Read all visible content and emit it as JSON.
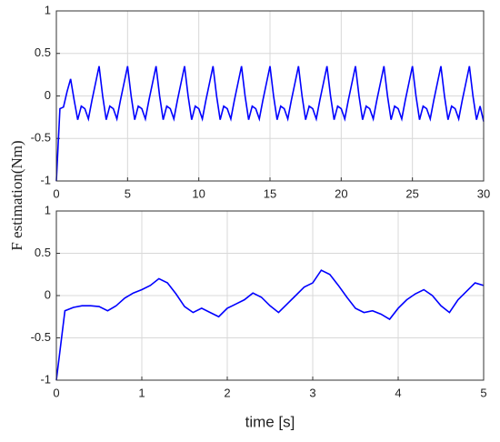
{
  "chart_data": [
    {
      "type": "line",
      "color": "#0000ff",
      "ylabel": "F estimation(Nm)",
      "x": [
        0,
        0.25,
        0.5,
        0.75,
        1,
        1.25,
        1.5,
        1.75,
        2,
        2.25,
        2.5,
        2.75,
        3,
        3.25,
        3.5,
        3.75,
        4,
        4.25,
        4.5,
        4.75,
        5,
        5.25,
        5.5,
        5.75,
        6,
        6.25,
        6.5,
        6.75,
        7,
        7.25,
        7.5,
        7.75,
        8,
        8.25,
        8.5,
        8.75,
        9,
        9.25,
        9.5,
        9.75,
        10,
        10.25,
        10.5,
        10.75,
        11,
        11.25,
        11.5,
        11.75,
        12,
        12.25,
        12.5,
        12.75,
        13,
        13.25,
        13.5,
        13.75,
        14,
        14.25,
        14.5,
        14.75,
        15,
        15.25,
        15.5,
        15.75,
        16,
        16.25,
        16.5,
        16.75,
        17,
        17.25,
        17.5,
        17.75,
        18,
        18.25,
        18.5,
        18.75,
        19,
        19.25,
        19.5,
        19.75,
        20,
        20.25,
        20.5,
        20.75,
        21,
        21.25,
        21.5,
        21.75,
        22,
        22.25,
        22.5,
        22.75,
        23,
        23.25,
        23.5,
        23.75,
        24,
        24.25,
        24.5,
        24.75,
        25,
        25.25,
        25.5,
        25.75,
        26,
        26.25,
        26.5,
        26.75,
        27,
        27.25,
        27.5,
        27.75,
        28,
        28.25,
        28.5,
        28.75,
        29,
        29.25,
        29.5,
        29.75,
        30
      ],
      "values": [
        -1,
        -0.15,
        -0.13,
        0.05,
        0.2,
        -0.05,
        -0.28,
        -0.12,
        -0.15,
        -0.27,
        -0.05,
        0.15,
        0.35,
        0.0,
        -0.28,
        -0.12,
        -0.15,
        -0.27,
        -0.05,
        0.15,
        0.35,
        0.0,
        -0.28,
        -0.12,
        -0.15,
        -0.27,
        -0.05,
        0.15,
        0.35,
        0.0,
        -0.28,
        -0.12,
        -0.15,
        -0.27,
        -0.05,
        0.15,
        0.35,
        0.0,
        -0.28,
        -0.12,
        -0.15,
        -0.27,
        -0.05,
        0.15,
        0.35,
        0.0,
        -0.28,
        -0.12,
        -0.15,
        -0.27,
        -0.05,
        0.15,
        0.35,
        0.0,
        -0.28,
        -0.12,
        -0.15,
        -0.27,
        -0.05,
        0.15,
        0.35,
        0.0,
        -0.28,
        -0.12,
        -0.15,
        -0.27,
        -0.05,
        0.15,
        0.35,
        0.0,
        -0.28,
        -0.12,
        -0.15,
        -0.27,
        -0.05,
        0.15,
        0.35,
        0.0,
        -0.28,
        -0.12,
        -0.15,
        -0.27,
        -0.05,
        0.15,
        0.35,
        0.0,
        -0.28,
        -0.12,
        -0.15,
        -0.27,
        -0.05,
        0.15,
        0.35,
        0.0,
        -0.28,
        -0.12,
        -0.15,
        -0.27,
        -0.05,
        0.15,
        0.35,
        0.0,
        -0.28,
        -0.12,
        -0.15,
        -0.27,
        -0.05,
        0.15,
        0.35,
        0.0,
        -0.28,
        -0.12,
        -0.15,
        -0.27,
        -0.05,
        0.15,
        0.35,
        0.0,
        -0.28,
        -0.12,
        -0.3
      ],
      "xlim": [
        0,
        30
      ],
      "xticks": [
        0,
        5,
        10,
        15,
        20,
        25,
        30
      ],
      "ylim": [
        -1,
        1
      ],
      "yticks": [
        -1,
        -0.5,
        0,
        0.5,
        1
      ],
      "grid": true
    },
    {
      "type": "line",
      "color": "#0000ff",
      "xlabel": "time [s]",
      "x": [
        0,
        0.1,
        0.2,
        0.3,
        0.4,
        0.5,
        0.6,
        0.7,
        0.8,
        0.9,
        1,
        1.1,
        1.2,
        1.3,
        1.4,
        1.5,
        1.6,
        1.7,
        1.8,
        1.9,
        2,
        2.1,
        2.2,
        2.3,
        2.4,
        2.5,
        2.6,
        2.7,
        2.8,
        2.9,
        3,
        3.1,
        3.2,
        3.3,
        3.4,
        3.5,
        3.6,
        3.7,
        3.8,
        3.9,
        4,
        4.1,
        4.2,
        4.3,
        4.4,
        4.5,
        4.6,
        4.7,
        4.8,
        4.9,
        5
      ],
      "values": [
        -1,
        -0.18,
        -0.14,
        -0.12,
        -0.12,
        -0.13,
        -0.18,
        -0.12,
        -0.03,
        0.03,
        0.07,
        0.12,
        0.2,
        0.15,
        0.02,
        -0.13,
        -0.2,
        -0.15,
        -0.2,
        -0.25,
        -0.15,
        -0.1,
        -0.05,
        0.03,
        -0.02,
        -0.12,
        -0.2,
        -0.1,
        0.0,
        0.1,
        0.15,
        0.3,
        0.25,
        0.12,
        -0.02,
        -0.15,
        -0.2,
        -0.18,
        -0.22,
        -0.28,
        -0.15,
        -0.05,
        0.02,
        0.07,
        0.0,
        -0.12,
        -0.2,
        -0.05,
        0.05,
        0.15,
        0.12
      ],
      "xlim": [
        0,
        5
      ],
      "xticks": [
        0,
        1,
        2,
        3,
        4,
        5
      ],
      "ylim": [
        -1,
        1
      ],
      "yticks": [
        -1,
        -0.5,
        0,
        0.5,
        1
      ],
      "grid": true
    }
  ]
}
